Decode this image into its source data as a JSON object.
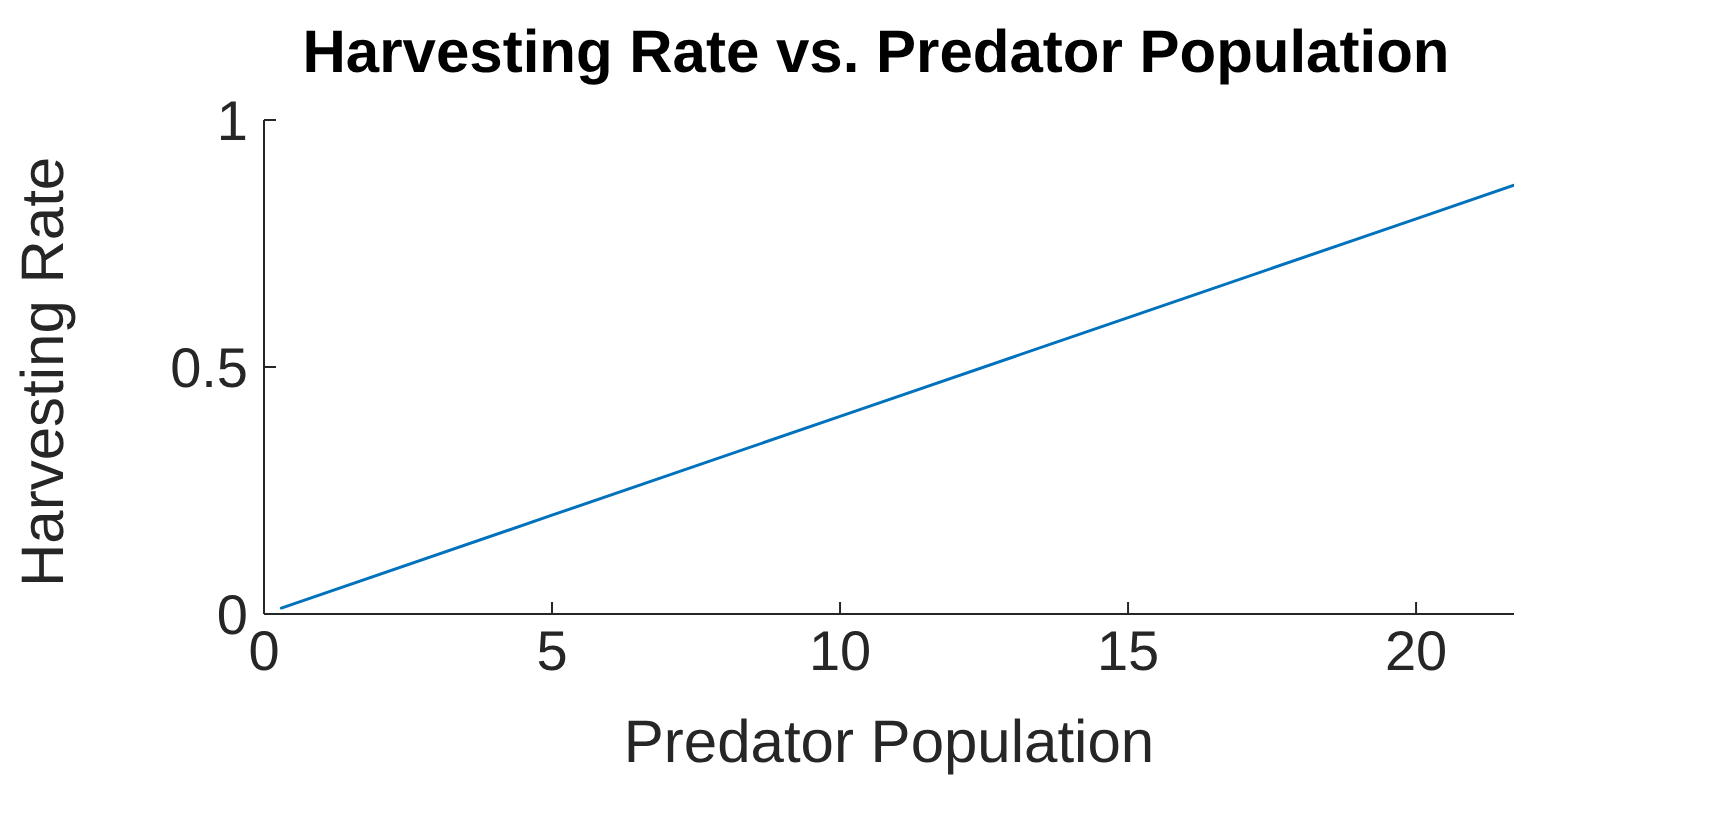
{
  "chart_data": {
    "type": "line",
    "title": "Harvesting Rate vs. Predator Population",
    "xlabel": "Predator Population",
    "ylabel": "Harvesting Rate",
    "x": [
      0.3,
      5,
      10,
      15,
      20,
      21.7
    ],
    "series": [
      {
        "color": "#0072bd",
        "values": [
          0.012,
          0.2,
          0.4,
          0.6,
          0.8,
          0.868
        ]
      }
    ],
    "xlim": [
      0,
      21.7
    ],
    "xticks": [
      0,
      5,
      10,
      15,
      20
    ],
    "ylim": [
      0,
      1
    ],
    "yticks": [
      0,
      0.5,
      1
    ],
    "grid": false,
    "legend": false,
    "marker": "none",
    "line_style": "solid"
  }
}
